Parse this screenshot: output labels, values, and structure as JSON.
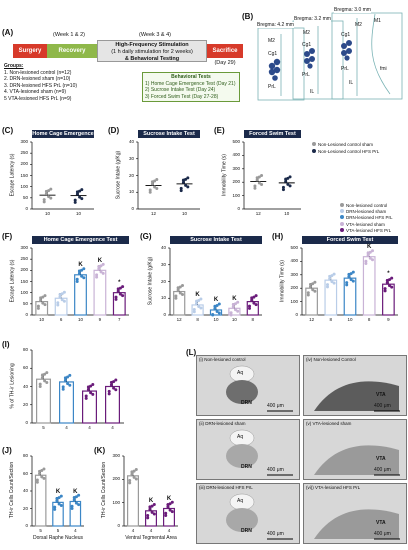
{
  "panelA": {
    "letter": "(A)",
    "week12": "(Week 1 & 2)",
    "week34": "(Week 3 & 4)",
    "surgery": "Surgery",
    "recovery": "Recovery",
    "hfs": [
      "High-Frequency Stimulation",
      "(1 h daily stimulation for 2 weeks)",
      "& Behavioral Testing"
    ],
    "sacrifice": "Sacrifice",
    "day29": "(Day 29)",
    "groups_title": "Groups:",
    "groups": [
      "1. Non-lesioned control (n=12)",
      "2. DRN-lesioned sham (n=10)",
      "3. DRN-lesioned HFS PrL (n=10)",
      "4. VTA-lesioned sham (n=9)",
      "5 VTA-lesioned HFS PrL (n=9)"
    ],
    "tests_title": "Behavioral Tests",
    "tests": [
      "1) Home Cage Emergence Test (Day 21)",
      "2) Sucrose Intake Test (Day 24)",
      "3) Forced Swim Test (Day 27-28)"
    ]
  },
  "panelB": {
    "letter": "(B)",
    "bregma": [
      "Bregma: 4.2 mm",
      "Bregma: 3.2 mm",
      "Bregma: 3.0 mm"
    ],
    "regions": [
      "M2",
      "Cg1",
      "PrL",
      "M2",
      "Cg1",
      "PrL",
      "IL",
      "M1",
      "M2",
      "Cg1",
      "PrL",
      "IL",
      "fmi"
    ]
  },
  "legend1": [
    "Non-Lesioned control sham",
    "Non-Lesioned control HFS PrL"
  ],
  "legend2": [
    "Non-lesioned control",
    "DRN-lesioned sham",
    "DRN-lesioned HFS PrL",
    "VTA-lesioned sham",
    "VTA-lesioned HFS PrL"
  ],
  "colors": {
    "g1": "#9a9a9a",
    "g2": "#b9cde8",
    "g3": "#3b86c6",
    "g4": "#c9b3d6",
    "g5": "#6a1b7a",
    "dark": "#1b2a4a"
  },
  "chart_data": [
    {
      "id": "C",
      "letter": "(C)",
      "type": "scatter",
      "title": "Home Cage Emergence Test",
      "ylabel": "Escape Latency (s)",
      "yticks": [
        "0",
        "50",
        "100",
        "150",
        "200",
        "250",
        "300"
      ],
      "ylim": [
        0,
        300
      ],
      "categories": [
        "10",
        "10"
      ],
      "values": [
        62,
        60
      ]
    },
    {
      "id": "D",
      "letter": "(D)",
      "type": "scatter",
      "title": "Sucrose Intake Test",
      "ylabel": "Sucrose Intake (g/Kg)",
      "yticks": [
        "0",
        "10",
        "20",
        "30",
        "40"
      ],
      "ylim": [
        0,
        40
      ],
      "categories": [
        "12",
        "10"
      ],
      "values": [
        14,
        15
      ]
    },
    {
      "id": "E",
      "letter": "(E)",
      "type": "scatter",
      "title": "Forced Swim Test",
      "ylabel": "Immobility Time (s)",
      "yticks": [
        "0",
        "100",
        "200",
        "300",
        "400",
        "500"
      ],
      "ylim": [
        0,
        500
      ],
      "categories": [
        "12",
        "10"
      ],
      "values": [
        205,
        195
      ]
    },
    {
      "id": "F",
      "letter": "(F)",
      "type": "bar",
      "title": "Home Cage Emergence Test",
      "ylabel": "Escape Latency (s)",
      "yticks": [
        "0",
        "50",
        "100",
        "150",
        "200",
        "250",
        "300"
      ],
      "ylim": [
        0,
        300
      ],
      "categories": [
        "10",
        "6",
        "10",
        "9",
        "7"
      ],
      "values": [
        60,
        75,
        180,
        200,
        100
      ],
      "marks": [
        "",
        "",
        "K",
        "K",
        "*"
      ]
    },
    {
      "id": "G",
      "letter": "(G)",
      "type": "bar",
      "title": "Sucrose Intake Test",
      "ylabel": "Sucrose Intake (g/Kg)",
      "yticks": [
        "0",
        "10",
        "20",
        "30",
        "40"
      ],
      "ylim": [
        0,
        40
      ],
      "categories": [
        "12",
        "8",
        "10",
        "10",
        "8"
      ],
      "values": [
        14,
        6,
        3,
        4,
        8
      ],
      "marks": [
        "",
        "K",
        "K",
        "K",
        ""
      ]
    },
    {
      "id": "H",
      "letter": "(H)",
      "type": "bar",
      "title": "Forced Swim Test",
      "ylabel": "Immobility Time (s)",
      "yticks": [
        "0",
        "100",
        "200",
        "300",
        "400",
        "500"
      ],
      "ylim": [
        0,
        500
      ],
      "categories": [
        "12",
        "8",
        "10",
        "8",
        "9"
      ],
      "values": [
        200,
        260,
        275,
        435,
        230
      ],
      "marks": [
        "",
        "",
        "",
        "K",
        "*"
      ]
    },
    {
      "id": "I",
      "letter": "(I)",
      "type": "bar",
      "title": "",
      "ylabel": "% of TH-ir Lesioning",
      "yticks": [
        "0",
        "20",
        "40",
        "60",
        "80"
      ],
      "ylim": [
        0,
        80
      ],
      "categories": [
        "5",
        "4",
        "4",
        "4"
      ],
      "values": [
        48,
        45,
        35,
        40
      ],
      "marks": [
        "",
        "",
        "",
        ""
      ]
    },
    {
      "id": "J",
      "letter": "(J)",
      "type": "bar",
      "title": "",
      "ylabel": "TH-ir Cells Count/Section",
      "xlabel": "Dorsal Raphe Nucleus",
      "yticks": [
        "0",
        "20",
        "40",
        "60",
        "80"
      ],
      "ylim": [
        0,
        80
      ],
      "categories": [
        "5",
        "5",
        "4"
      ],
      "values": [
        58,
        27,
        28
      ],
      "marks": [
        "",
        "K",
        "K"
      ]
    },
    {
      "id": "K",
      "letter": "(K)",
      "type": "bar",
      "title": "",
      "ylabel": "TH-ir Cells Count/Section",
      "xlabel": "Ventral Tegmental Area",
      "yticks": [
        "0",
        "100",
        "200",
        "300"
      ],
      "ylim": [
        0,
        300
      ],
      "categories": [
        "4",
        "4",
        "4"
      ],
      "values": [
        215,
        65,
        75
      ],
      "marks": [
        "",
        "K",
        "K"
      ]
    }
  ],
  "panelL": {
    "letter": "(L)",
    "images": [
      {
        "title": "(i) Non-lesioned control",
        "region": "DRN",
        "aq": "Aq",
        "scale": "400 μm"
      },
      {
        "title": "(iv) Non-lesioned Control",
        "region": "VTA",
        "aq": "",
        "scale": "400 μm"
      },
      {
        "title": "(ii) DRN-lesioned sham",
        "region": "DRN",
        "aq": "Aq",
        "scale": "400 μm"
      },
      {
        "title": "(v) VTA-lesioned sham",
        "region": "VTA",
        "aq": "",
        "scale": "400 μm"
      },
      {
        "title": "(iii) DRN-lesioned HFS PrL",
        "region": "DRN",
        "aq": "Aq",
        "scale": "400 μm"
      },
      {
        "title": "(vi)) VTA-lesioned HFS PrL",
        "region": "VTA",
        "aq": "",
        "scale": "400 μm"
      }
    ]
  }
}
